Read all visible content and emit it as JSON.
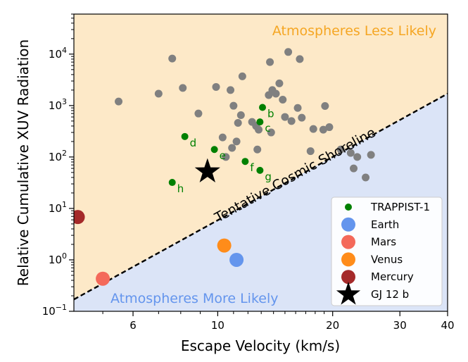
{
  "chart_data": {
    "type": "scatter",
    "xlabel": "Escape Velocity (km/s)",
    "ylabel": "Relative Cumulative XUV Radiation",
    "xscale": "log",
    "yscale": "log",
    "xlim": [
      4.2,
      40
    ],
    "ylim": [
      0.1,
      60000
    ],
    "x_ticks": [
      {
        "value": 6,
        "label": "6"
      },
      {
        "value": 10,
        "label": "10"
      },
      {
        "value": 20,
        "label": "20"
      },
      {
        "value": 30,
        "label": "30"
      },
      {
        "value": 40,
        "label": "40"
      }
    ],
    "y_ticks": [
      {
        "value": 0.1,
        "base": "10",
        "exp": "−1"
      },
      {
        "value": 1,
        "base": "10",
        "exp": "0"
      },
      {
        "value": 10,
        "base": "10",
        "exp": "1"
      },
      {
        "value": 100,
        "base": "10",
        "exp": "2"
      },
      {
        "value": 1000,
        "base": "10",
        "exp": "3"
      },
      {
        "value": 10000,
        "base": "10",
        "exp": "4"
      }
    ],
    "grid": false,
    "legend_position": "lower-right",
    "region_labels": {
      "upper": "Atmospheres Less Likely",
      "lower": "Atmospheres More Likely",
      "shoreline": "Tentative Cosmic Shoreline"
    },
    "shoreline": {
      "x": [
        4.2,
        40
      ],
      "y": [
        0.17,
        1700
      ]
    },
    "colors": {
      "upper_region": "#fde9c8",
      "lower_region": "#dbe4f7",
      "upper_text": "#f5a623",
      "lower_text": "#6495ed",
      "other_planets": "#808080",
      "trappist": "#008000",
      "earth": "#6495ed",
      "mars": "#f4695a",
      "venus": "#ff8c1a",
      "mercury": "#a52a2a",
      "gj12b": "#000000"
    },
    "other_planets": [
      [
        5.5,
        1200
      ],
      [
        7.0,
        1700
      ],
      [
        7.6,
        8200
      ],
      [
        8.1,
        2200
      ],
      [
        8.9,
        700
      ],
      [
        9.9,
        2300
      ],
      [
        10.3,
        240
      ],
      [
        10.5,
        100
      ],
      [
        10.8,
        2000
      ],
      [
        10.9,
        150
      ],
      [
        11.0,
        990
      ],
      [
        11.2,
        200
      ],
      [
        11.3,
        460
      ],
      [
        11.6,
        3700
      ],
      [
        11.5,
        650
      ],
      [
        12.3,
        480
      ],
      [
        12.6,
        400
      ],
      [
        12.7,
        140
      ],
      [
        12.8,
        340
      ],
      [
        13.6,
        1600
      ],
      [
        13.7,
        7000
      ],
      [
        13.8,
        300
      ],
      [
        13.9,
        2000
      ],
      [
        14.2,
        1700
      ],
      [
        14.5,
        2700
      ],
      [
        14.8,
        1300
      ],
      [
        15.0,
        600
      ],
      [
        15.3,
        11000
      ],
      [
        15.6,
        500
      ],
      [
        16.2,
        900
      ],
      [
        16.4,
        8000
      ],
      [
        16.6,
        580
      ],
      [
        17.5,
        130
      ],
      [
        17.8,
        350
      ],
      [
        18.9,
        340
      ],
      [
        19.1,
        980
      ],
      [
        19.6,
        380
      ],
      [
        21.0,
        140
      ],
      [
        22.3,
        120
      ],
      [
        22.7,
        60
      ],
      [
        23.2,
        100
      ],
      [
        24.4,
        40
      ],
      [
        25.2,
        110
      ]
    ],
    "trappist": [
      {
        "label": "b",
        "x": 13.1,
        "y": 920
      },
      {
        "label": "c",
        "x": 12.9,
        "y": 480
      },
      {
        "label": "d",
        "x": 8.2,
        "y": 250
      },
      {
        "label": "e",
        "x": 9.8,
        "y": 140
      },
      {
        "label": "f",
        "x": 11.8,
        "y": 82
      },
      {
        "label": "g",
        "x": 12.9,
        "y": 55
      },
      {
        "label": "h",
        "x": 7.6,
        "y": 32
      }
    ],
    "solar_system": [
      {
        "name": "Earth",
        "x": 11.2,
        "y": 1.0
      },
      {
        "name": "Mars",
        "x": 5.0,
        "y": 0.43
      },
      {
        "name": "Venus",
        "x": 10.4,
        "y": 1.9
      },
      {
        "name": "Mercury",
        "x": 4.3,
        "y": 6.8
      }
    ],
    "gj12b": {
      "name": "GJ 12 b",
      "x": 9.4,
      "y": 52
    },
    "legend": [
      "TRAPPIST-1",
      "Earth",
      "Mars",
      "Venus",
      "Mercury",
      "GJ 12 b"
    ]
  }
}
